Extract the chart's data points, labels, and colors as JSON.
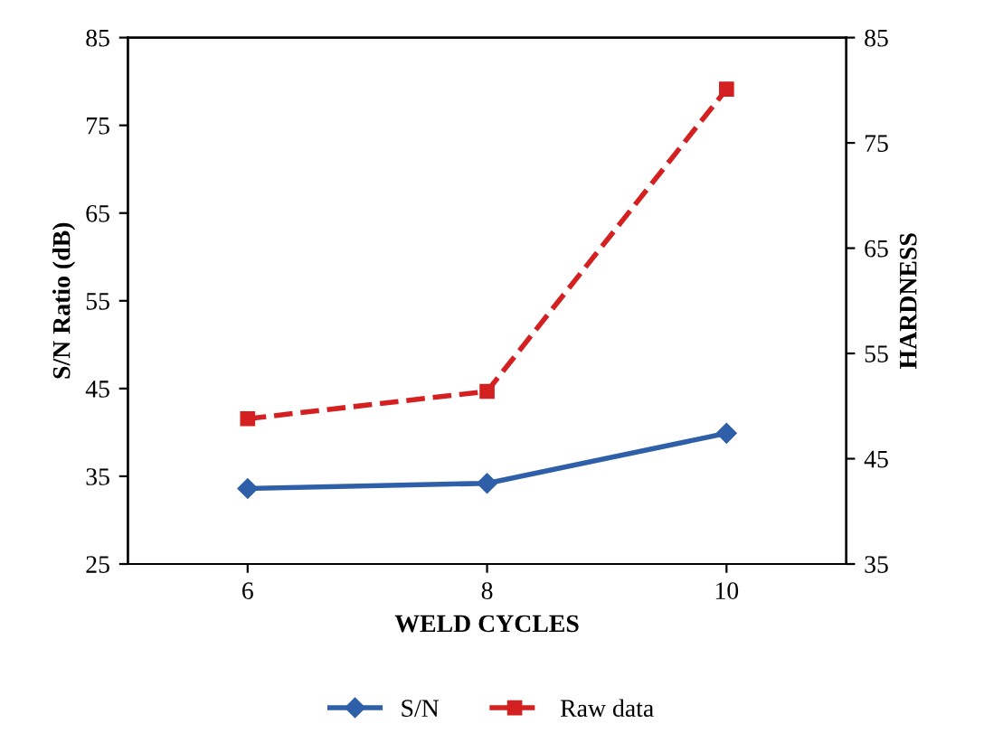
{
  "chart_data": {
    "type": "line",
    "xlabel": "WELD CYCLES",
    "ylabel": "S/N Ratio (dB)",
    "y2label": "HARDNESS",
    "categories": [
      "6",
      "8",
      "10"
    ],
    "series": [
      {
        "name": "S/N",
        "color": "#2e5fa8",
        "values": [
          33.6,
          34.2,
          39.9
        ],
        "marker": "diamond",
        "line_style": "solid"
      },
      {
        "name": "Raw data",
        "color": "#d42020",
        "values": [
          48.8,
          51.4,
          80.1
        ],
        "marker": "square",
        "line_style": "dashed",
        "axis": "y2"
      }
    ],
    "ylim": [
      25,
      85
    ],
    "yticks": [
      25,
      35,
      45,
      55,
      65,
      75,
      85
    ],
    "y2lim": [
      35,
      85
    ],
    "y2ticks": [
      35,
      45,
      55,
      65,
      75,
      85
    ],
    "grid": false,
    "legend": "bottom"
  }
}
